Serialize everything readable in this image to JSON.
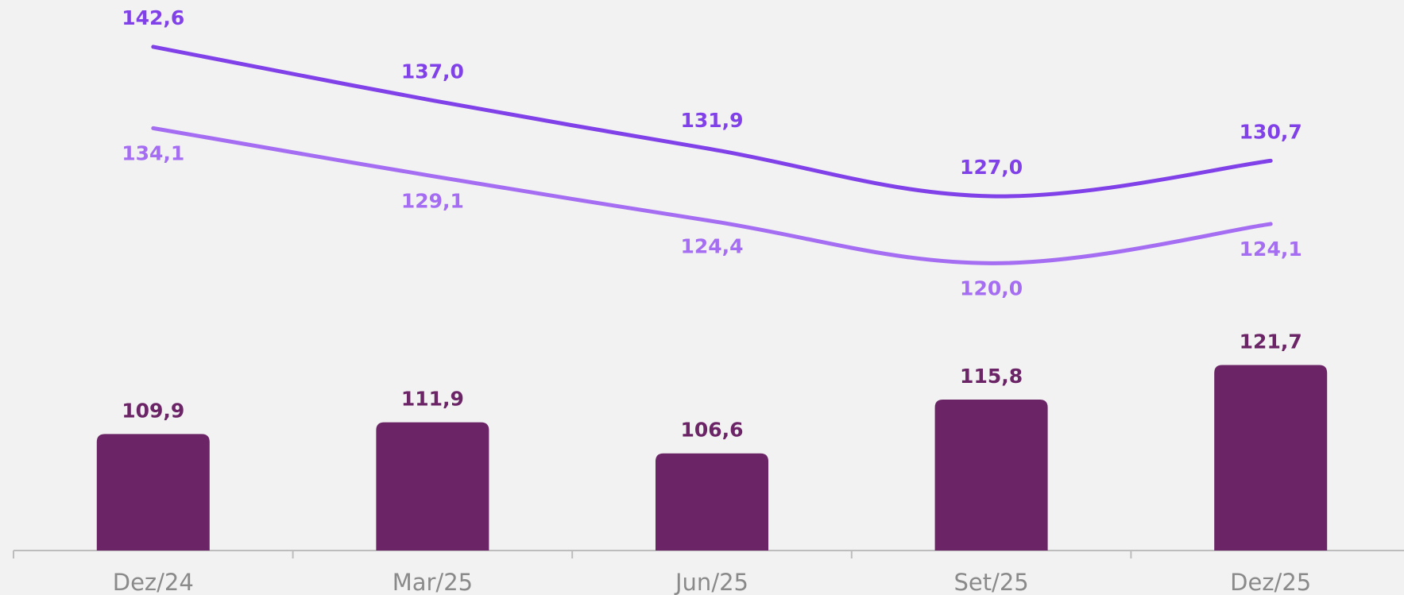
{
  "chart_data": {
    "type": "bar",
    "categories": [
      "Dez/24",
      "Mar/25",
      "Jun/25",
      "Set/25",
      "Dez/25"
    ],
    "ylim": [
      90,
      180
    ],
    "y2lim": [
      90,
      145
    ],
    "series": [
      {
        "type": "bar",
        "color": "#6b2466",
        "values": [
          109.9,
          111.9,
          106.6,
          115.8,
          121.7
        ],
        "value_labels": [
          "109,9",
          "111,9",
          "106,6",
          "115,8",
          "121,7"
        ]
      },
      {
        "type": "line",
        "axis": "y2",
        "color": "#8141e8",
        "values": [
          142.6,
          137.0,
          131.9,
          127.0,
          130.7
        ],
        "value_labels": [
          "142,6",
          "137,0",
          "131,9",
          "127,0",
          "130,7"
        ]
      },
      {
        "type": "line",
        "axis": "y2",
        "color": "#a56ef2",
        "values": [
          134.1,
          129.1,
          124.4,
          120.0,
          124.1
        ],
        "value_labels": [
          "134,1",
          "129,1",
          "124,4",
          "120,0",
          "124,1"
        ]
      }
    ]
  }
}
